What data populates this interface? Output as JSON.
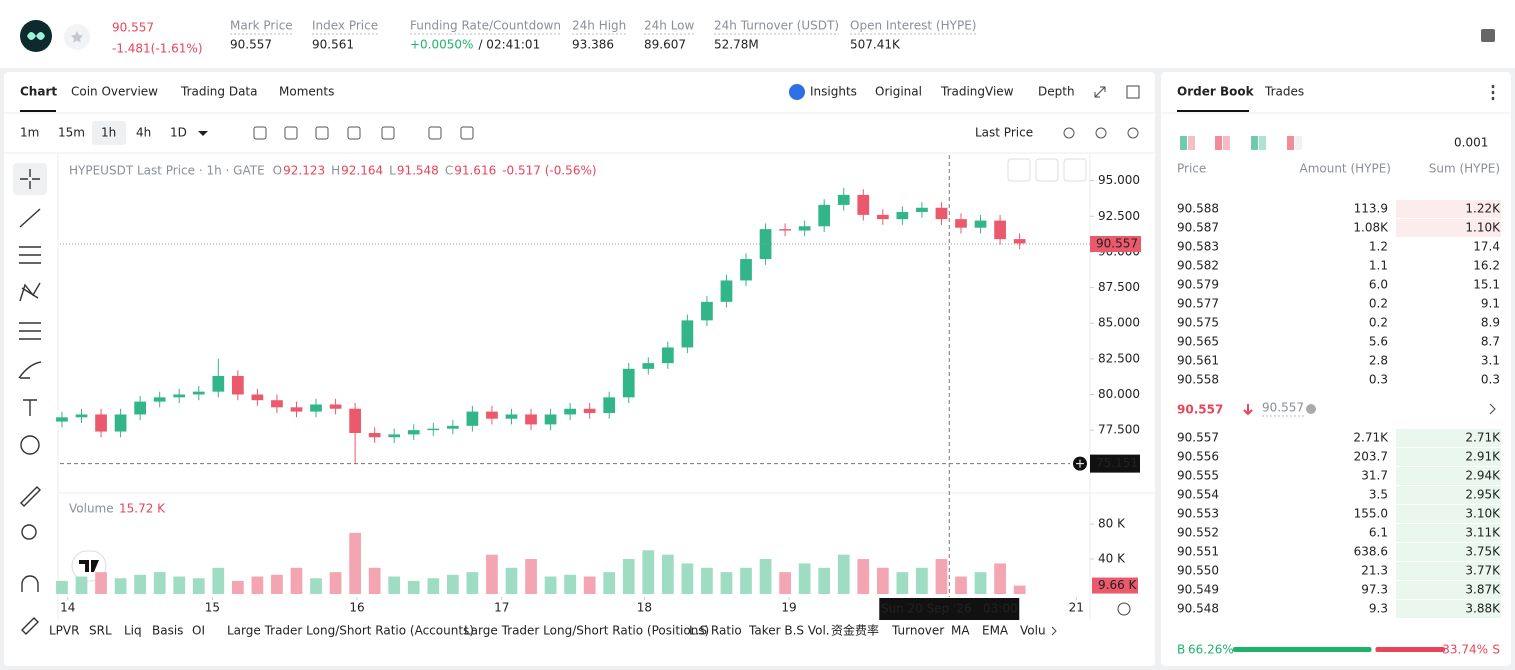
{
  "header": {
    "price": "90.557",
    "change": "-1.481(-1.61%)",
    "stats": [
      {
        "label": "Mark Price",
        "value": "90.557"
      },
      {
        "label": "Index Price",
        "value": "90.561"
      },
      {
        "label": "Funding Rate/Countdown",
        "value": "+0.0050%",
        "extra": "/ 02:41:01"
      },
      {
        "label": "24h High",
        "value": "93.386"
      },
      {
        "label": "24h Low",
        "value": "89.607"
      },
      {
        "label": "24h Turnover (USDT)",
        "value": "52.78M"
      },
      {
        "label": "Open Interest (HYPE)",
        "value": "507.41K"
      }
    ]
  },
  "chart_tabs": [
    "Chart",
    "Coin Overview",
    "Trading Data",
    "Moments"
  ],
  "view_tabs": [
    "Insights",
    "Original",
    "TradingView",
    "Depth"
  ],
  "intervals": [
    "1m",
    "15m",
    "1h",
    "4h",
    "1D"
  ],
  "price_source": "Last Price",
  "chart_data": {
    "type": "candlestick",
    "title": "HYPEUSDT Last Price · 1h · GATE",
    "ohlc_legend": [
      {
        "label": "O",
        "value": "92.123"
      },
      {
        "label": "H",
        "value": "92.164"
      },
      {
        "label": "L",
        "value": "91.548"
      },
      {
        "label": "C",
        "value": "91.616"
      }
    ],
    "legend_change": "-0.517 (-0.56%)",
    "up_color": "#33b58a",
    "down_color": "#ea5a6c",
    "up_volume_color": "#9edcc3",
    "down_volume_color": "#f3a6b2",
    "open": [
      78.1,
      78.4,
      78.6,
      77.4,
      78.6,
      79.5,
      79.8,
      80.0,
      80.2,
      81.3,
      80.0,
      79.6,
      79.1,
      78.8,
      79.3,
      79.0,
      77.3,
      77.0,
      77.2,
      77.5,
      77.6,
      77.8,
      78.8,
      78.3,
      78.6,
      77.9,
      78.6,
      79.0,
      78.7,
      79.8,
      81.8,
      82.2,
      83.3,
      85.2,
      86.5,
      88.0,
      89.5,
      91.6,
      91.5,
      91.8,
      93.3,
      94.0,
      92.6,
      92.3,
      92.8,
      93.1,
      92.3,
      91.7,
      92.2,
      90.9
    ],
    "high": [
      78.8,
      79.0,
      79.0,
      79.0,
      79.9,
      80.2,
      80.4,
      80.6,
      82.5,
      81.7,
      80.4,
      80.0,
      79.5,
      79.7,
      79.7,
      79.4,
      77.7,
      77.6,
      77.9,
      78.0,
      78.2,
      79.2,
      79.2,
      79.0,
      79.0,
      79.0,
      79.4,
      79.4,
      80.2,
      82.2,
      82.6,
      83.7,
      85.6,
      86.9,
      88.4,
      89.9,
      92.0,
      92.0,
      92.2,
      93.7,
      94.5,
      94.4,
      93.0,
      93.2,
      93.5,
      93.5,
      92.7,
      92.6,
      92.6,
      91.3
    ],
    "low": [
      77.7,
      78.0,
      77.0,
      77.0,
      78.2,
      79.1,
      79.4,
      79.6,
      79.8,
      79.6,
      79.2,
      78.7,
      78.4,
      78.4,
      78.6,
      75.15,
      76.6,
      76.6,
      76.8,
      77.1,
      77.2,
      77.4,
      77.9,
      77.9,
      77.5,
      77.5,
      78.2,
      78.3,
      78.3,
      79.4,
      81.4,
      81.8,
      82.9,
      84.8,
      86.1,
      87.6,
      89.1,
      91.1,
      91.1,
      91.4,
      92.9,
      92.2,
      91.9,
      91.9,
      92.4,
      91.9,
      91.3,
      91.3,
      90.5,
      90.2
    ],
    "close": [
      78.4,
      78.6,
      77.4,
      78.6,
      79.5,
      79.8,
      80.0,
      80.2,
      81.3,
      80.0,
      79.6,
      79.1,
      78.8,
      79.3,
      79.0,
      77.3,
      77.0,
      77.2,
      77.5,
      77.6,
      77.8,
      78.8,
      78.3,
      78.6,
      77.9,
      78.6,
      79.0,
      78.7,
      79.8,
      81.8,
      82.2,
      83.3,
      85.2,
      86.5,
      88.0,
      89.5,
      91.6,
      91.5,
      91.8,
      93.3,
      94.0,
      92.6,
      92.3,
      92.8,
      93.1,
      92.3,
      91.7,
      92.2,
      90.9,
      90.6
    ],
    "volume": [
      15,
      20,
      25,
      18,
      22,
      25,
      20,
      18,
      30,
      15,
      20,
      22,
      30,
      18,
      25,
      70,
      30,
      20,
      15,
      18,
      22,
      25,
      45,
      30,
      40,
      20,
      22,
      20,
      25,
      40,
      50,
      45,
      35,
      30,
      25,
      30,
      40,
      25,
      35,
      30,
      45,
      40,
      30,
      25,
      30,
      40,
      20,
      25,
      35,
      9.66
    ],
    "xlim": [
      -0.1,
      52.6
    ],
    "xticks": [
      {
        "value": 0.3,
        "label": "14"
      },
      {
        "value": 7.7,
        "label": "15"
      },
      {
        "value": 15.1,
        "label": "16"
      },
      {
        "value": 22.5,
        "label": "17"
      },
      {
        "value": 29.8,
        "label": "18"
      },
      {
        "value": 37.2,
        "label": "19"
      },
      {
        "value": 51.9,
        "label": "21"
      }
    ],
    "ylim": [
      73.3,
      96.8
    ],
    "yticks": [
      {
        "value": 77.5,
        "label": "77.500"
      },
      {
        "value": 80,
        "label": "80.000"
      },
      {
        "value": 82.5,
        "label": "82.500"
      },
      {
        "value": 85,
        "label": "85.000"
      },
      {
        "value": 87.5,
        "label": "87.500"
      },
      {
        "value": 90,
        "label": "90.000"
      },
      {
        "value": 92.5,
        "label": "92.500"
      },
      {
        "value": 95,
        "label": "95.000"
      }
    ],
    "last_price": 90.557,
    "crosshair": {
      "x": 45.4,
      "price": 75.151,
      "time": "Sun 20 Sep '26   03:00"
    },
    "volume_title": "Volume",
    "volume_value": "15.72 K",
    "y2lim": [
      0,
      111
    ],
    "y2ticks": [
      {
        "value": 40,
        "label": "40 K"
      },
      {
        "value": 80,
        "label": "80 K"
      }
    ],
    "last_volume_label": "9.66 K"
  },
  "indicators": [
    "LPVR",
    "SRL",
    "Liq",
    "Basis",
    "OI",
    "Large Trader Long/Short Ratio (Accounts)",
    "Large Trader Long/Short Ratio (Positions)",
    "L.S Ratio",
    "Taker B.S Vol.",
    "资金费率",
    "Turnover",
    "MA",
    "EMA",
    "Volu"
  ],
  "order_book": {
    "tabs": [
      "Order Book",
      "Trades"
    ],
    "precision": "0.001",
    "columns": [
      "Price",
      "Amount (HYPE)",
      "Sum (HYPE)"
    ],
    "asks": [
      [
        "90.588",
        "113.9",
        "1.22K"
      ],
      [
        "90.587",
        "1.08K",
        "1.10K"
      ],
      [
        "90.583",
        "1.2",
        "17.4"
      ],
      [
        "90.582",
        "1.1",
        "16.2"
      ],
      [
        "90.579",
        "6.0",
        "15.1"
      ],
      [
        "90.577",
        "0.2",
        "9.1"
      ],
      [
        "90.575",
        "0.2",
        "8.9"
      ],
      [
        "90.565",
        "5.6",
        "8.7"
      ],
      [
        "90.561",
        "2.8",
        "3.1"
      ],
      [
        "90.558",
        "0.3",
        "0.3"
      ]
    ],
    "mid_price": "90.557",
    "mark_price": "90.557",
    "bids": [
      [
        "90.557",
        "2.71K",
        "2.71K"
      ],
      [
        "90.556",
        "203.7",
        "2.91K"
      ],
      [
        "90.555",
        "31.7",
        "2.94K"
      ],
      [
        "90.554",
        "3.5",
        "2.95K"
      ],
      [
        "90.553",
        "155.0",
        "3.10K"
      ],
      [
        "90.552",
        "6.1",
        "3.11K"
      ],
      [
        "90.551",
        "638.6",
        "3.75K"
      ],
      [
        "90.550",
        "21.3",
        "3.77K"
      ],
      [
        "90.549",
        "97.3",
        "3.87K"
      ],
      [
        "90.548",
        "9.3",
        "3.88K"
      ]
    ],
    "ratio": {
      "b": "B",
      "buy": 66.26,
      "buy_label": "66.26%",
      "sell": 33.74,
      "sell_label": "33.74%",
      "s": "S"
    }
  }
}
